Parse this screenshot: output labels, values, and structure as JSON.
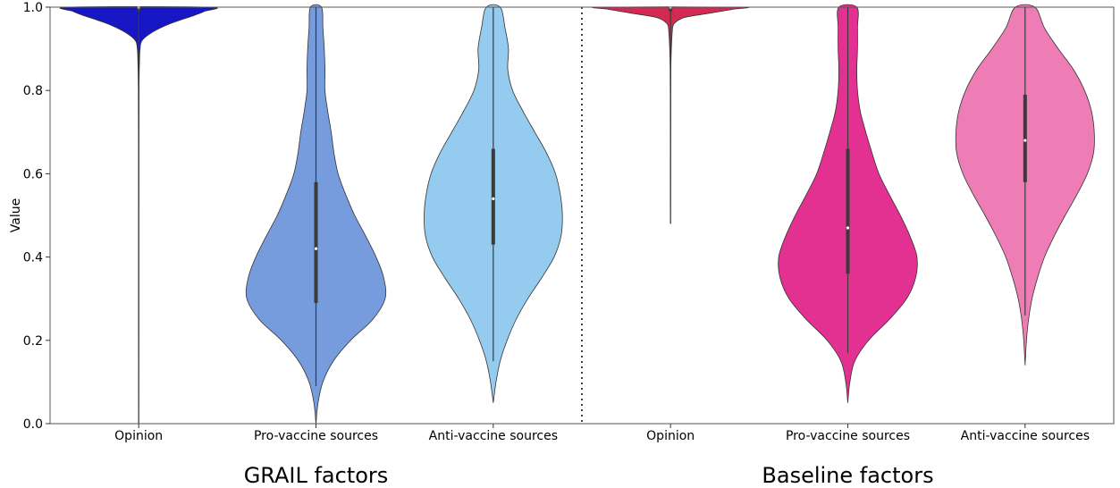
{
  "chart_data": {
    "type": "violin",
    "ylabel": "Value",
    "ylim": [
      0,
      1
    ],
    "yticks": [
      "0.0",
      "0.2",
      "0.4",
      "0.6",
      "0.8",
      "1.0"
    ],
    "categories": [
      "Opinion",
      "Pro-vaccine sources",
      "Anti-vaccine sources",
      "Opinion",
      "Pro-vaccine sources",
      "Anti-vaccine sources"
    ],
    "groups": [
      {
        "label": "GRAIL factors",
        "categories": [
          0,
          1,
          2
        ]
      },
      {
        "label": "Baseline factors",
        "categories": [
          3,
          4,
          5
        ]
      }
    ],
    "group_separator_after_category": 2,
    "violins": [
      {
        "category": "Opinion",
        "color": "#1616c4",
        "min": 0.0,
        "max": 1.0,
        "q1": 0.99,
        "median": 1.0,
        "q3": 1.0,
        "profile": [
          [
            0.0,
            0.0
          ],
          [
            0.2,
            0.002
          ],
          [
            0.4,
            0.002
          ],
          [
            0.6,
            0.003
          ],
          [
            0.8,
            0.005
          ],
          [
            0.87,
            0.012
          ],
          [
            0.9,
            0.02
          ],
          [
            0.92,
            0.05
          ],
          [
            0.94,
            0.2
          ],
          [
            0.96,
            0.45
          ],
          [
            0.98,
            0.8
          ],
          [
            0.99,
            0.95
          ],
          [
            1.0,
            1.0
          ]
        ]
      },
      {
        "category": "Pro-vaccine sources",
        "color": "#769cdd",
        "min": 0.09,
        "max": 1.0,
        "q1": 0.29,
        "median": 0.42,
        "q3": 0.58,
        "profile": [
          [
            0.0,
            0.0
          ],
          [
            0.05,
            0.03
          ],
          [
            0.1,
            0.1
          ],
          [
            0.15,
            0.25
          ],
          [
            0.2,
            0.5
          ],
          [
            0.25,
            0.82
          ],
          [
            0.3,
            1.0
          ],
          [
            0.35,
            0.98
          ],
          [
            0.4,
            0.87
          ],
          [
            0.45,
            0.72
          ],
          [
            0.5,
            0.56
          ],
          [
            0.55,
            0.43
          ],
          [
            0.6,
            0.32
          ],
          [
            0.65,
            0.26
          ],
          [
            0.7,
            0.22
          ],
          [
            0.75,
            0.17
          ],
          [
            0.8,
            0.13
          ],
          [
            0.85,
            0.13
          ],
          [
            0.9,
            0.12
          ],
          [
            0.95,
            0.1
          ],
          [
            1.0,
            0.08
          ]
        ]
      },
      {
        "category": "Anti-vaccine sources",
        "color": "#95cbee",
        "min": 0.15,
        "max": 1.0,
        "q1": 0.43,
        "median": 0.54,
        "q3": 0.66,
        "profile": [
          [
            0.05,
            0.0
          ],
          [
            0.1,
            0.04
          ],
          [
            0.15,
            0.1
          ],
          [
            0.2,
            0.2
          ],
          [
            0.25,
            0.33
          ],
          [
            0.3,
            0.5
          ],
          [
            0.35,
            0.7
          ],
          [
            0.4,
            0.88
          ],
          [
            0.45,
            0.98
          ],
          [
            0.5,
            1.0
          ],
          [
            0.55,
            0.97
          ],
          [
            0.6,
            0.9
          ],
          [
            0.65,
            0.77
          ],
          [
            0.7,
            0.6
          ],
          [
            0.75,
            0.43
          ],
          [
            0.8,
            0.28
          ],
          [
            0.85,
            0.21
          ],
          [
            0.9,
            0.22
          ],
          [
            0.95,
            0.17
          ],
          [
            1.0,
            0.1
          ]
        ]
      },
      {
        "category": "Opinion",
        "color": "#d42a52",
        "min": 0.48,
        "max": 1.0,
        "q1": 0.99,
        "median": 1.0,
        "q3": 1.0,
        "profile": [
          [
            0.48,
            0.0
          ],
          [
            0.6,
            0.002
          ],
          [
            0.75,
            0.003
          ],
          [
            0.85,
            0.005
          ],
          [
            0.9,
            0.012
          ],
          [
            0.94,
            0.025
          ],
          [
            0.96,
            0.05
          ],
          [
            0.975,
            0.2
          ],
          [
            0.985,
            0.55
          ],
          [
            0.995,
            0.9
          ],
          [
            1.0,
            1.0
          ]
        ]
      },
      {
        "category": "Pro-vaccine sources",
        "color": "#e33191",
        "min": 0.17,
        "max": 1.0,
        "q1": 0.36,
        "median": 0.47,
        "q3": 0.66,
        "profile": [
          [
            0.05,
            0.0
          ],
          [
            0.1,
            0.03
          ],
          [
            0.15,
            0.1
          ],
          [
            0.2,
            0.3
          ],
          [
            0.25,
            0.6
          ],
          [
            0.3,
            0.85
          ],
          [
            0.35,
            0.98
          ],
          [
            0.4,
            1.0
          ],
          [
            0.45,
            0.9
          ],
          [
            0.5,
            0.76
          ],
          [
            0.55,
            0.6
          ],
          [
            0.6,
            0.45
          ],
          [
            0.65,
            0.35
          ],
          [
            0.7,
            0.26
          ],
          [
            0.75,
            0.18
          ],
          [
            0.8,
            0.14
          ],
          [
            0.85,
            0.13
          ],
          [
            0.9,
            0.14
          ],
          [
            0.95,
            0.14
          ],
          [
            1.0,
            0.13
          ]
        ]
      },
      {
        "category": "Anti-vaccine sources",
        "color": "#ee7db5",
        "min": 0.26,
        "max": 1.0,
        "q1": 0.58,
        "median": 0.68,
        "q3": 0.79,
        "profile": [
          [
            0.14,
            0.0
          ],
          [
            0.2,
            0.02
          ],
          [
            0.25,
            0.05
          ],
          [
            0.3,
            0.1
          ],
          [
            0.35,
            0.18
          ],
          [
            0.4,
            0.28
          ],
          [
            0.45,
            0.42
          ],
          [
            0.5,
            0.58
          ],
          [
            0.55,
            0.75
          ],
          [
            0.6,
            0.9
          ],
          [
            0.65,
            0.99
          ],
          [
            0.7,
            1.0
          ],
          [
            0.75,
            0.96
          ],
          [
            0.8,
            0.86
          ],
          [
            0.85,
            0.7
          ],
          [
            0.9,
            0.48
          ],
          [
            0.95,
            0.28
          ],
          [
            1.0,
            0.14
          ]
        ]
      }
    ]
  }
}
